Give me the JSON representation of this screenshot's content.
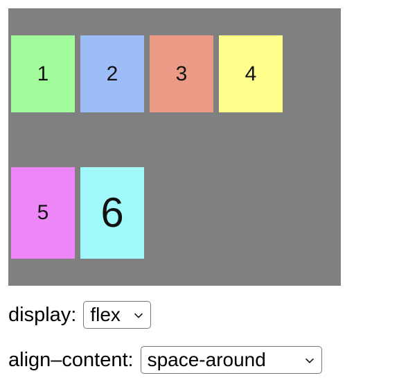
{
  "flex_container": {
    "items": [
      {
        "label": "1",
        "color": "#a1fb9b"
      },
      {
        "label": "2",
        "color": "#9dbdf7"
      },
      {
        "label": "3",
        "color": "#eb9b85"
      },
      {
        "label": "4",
        "color": "#ffff8c"
      },
      {
        "label": "5",
        "color": "#ed87f7"
      },
      {
        "label": "6",
        "color": "#a0f8f8"
      }
    ],
    "background_color": "#808080"
  },
  "controls": {
    "display": {
      "label": "display:",
      "selected_value": "flex"
    },
    "align_content": {
      "label": "align–content:",
      "selected_value": "space-around"
    }
  },
  "icons": {
    "chevron": "chevron-down-icon"
  }
}
